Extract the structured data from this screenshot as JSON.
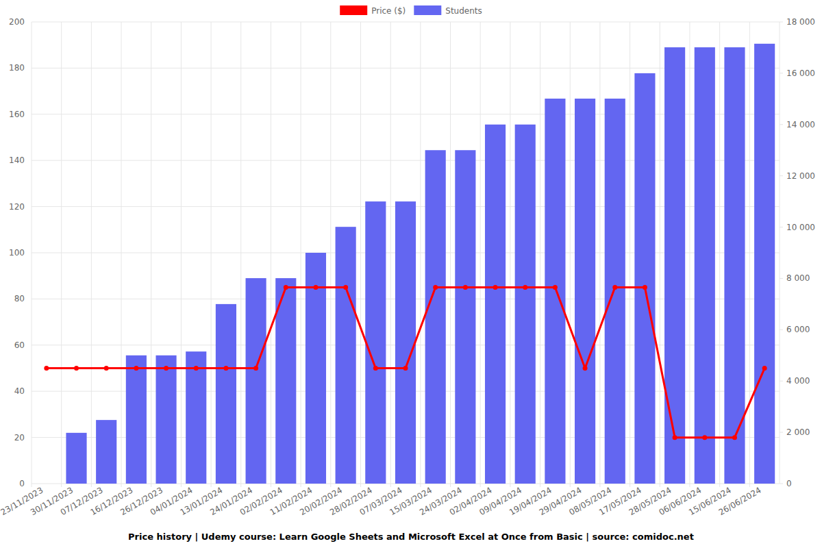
{
  "chart_data": {
    "type": "bar",
    "title": "Price history | Udemy course: Learn Google Sheets and Microsoft Excel at Once from Basic | source: comidoc.net",
    "categories": [
      "23/11/2023",
      "30/11/2023",
      "07/12/2023",
      "16/12/2023",
      "26/12/2023",
      "04/01/2024",
      "13/01/2024",
      "24/01/2024",
      "02/02/2024",
      "11/02/2024",
      "20/02/2024",
      "28/02/2024",
      "07/03/2024",
      "15/03/2024",
      "24/03/2024",
      "02/04/2024",
      "09/04/2024",
      "19/04/2024",
      "29/04/2024",
      "08/05/2024",
      "17/05/2024",
      "28/05/2024",
      "06/06/2024",
      "15/06/2024",
      "26/06/2024"
    ],
    "series": [
      {
        "name": "Price ($)",
        "type": "line",
        "color": "#ff0000",
        "marker": "circle",
        "axis": "y",
        "values": [
          49.99,
          49.99,
          49.99,
          49.99,
          49.99,
          49.99,
          49.99,
          49.99,
          84.99,
          84.99,
          84.99,
          49.99,
          49.99,
          84.99,
          84.99,
          84.99,
          84.99,
          84.99,
          49.99,
          84.99,
          84.99,
          19.99,
          19.99,
          19.99,
          49.99
        ]
      },
      {
        "name": "Students",
        "type": "bar",
        "color": "#6366f1",
        "axis": "y2",
        "values": [
          0,
          1980,
          2480,
          5000,
          5000,
          5150,
          7000,
          8010,
          8010,
          9000,
          10010,
          11000,
          11000,
          13000,
          13000,
          14000,
          14000,
          15010,
          15010,
          15010,
          16000,
          17010,
          17010,
          17010,
          17150
        ]
      }
    ],
    "ylim": [
      0,
      200
    ],
    "yticks": [
      0,
      20,
      40,
      60,
      80,
      100,
      120,
      140,
      160,
      180,
      200
    ],
    "y2lim": [
      0,
      18000
    ],
    "y2ticks": [
      0,
      {
        "value": 2000,
        "label": "2 000"
      },
      {
        "value": 4000,
        "label": "4 000"
      },
      {
        "value": 6000,
        "label": "6 000"
      },
      {
        "value": 8000,
        "label": "8 000"
      },
      {
        "value": 10000,
        "label": "10 000"
      },
      {
        "value": 12000,
        "label": "12 000"
      },
      {
        "value": 14000,
        "label": "14 000"
      },
      {
        "value": 16000,
        "label": "16 000"
      },
      {
        "value": 18000,
        "label": "18 000"
      }
    ],
    "grid": true,
    "legend": "top"
  }
}
